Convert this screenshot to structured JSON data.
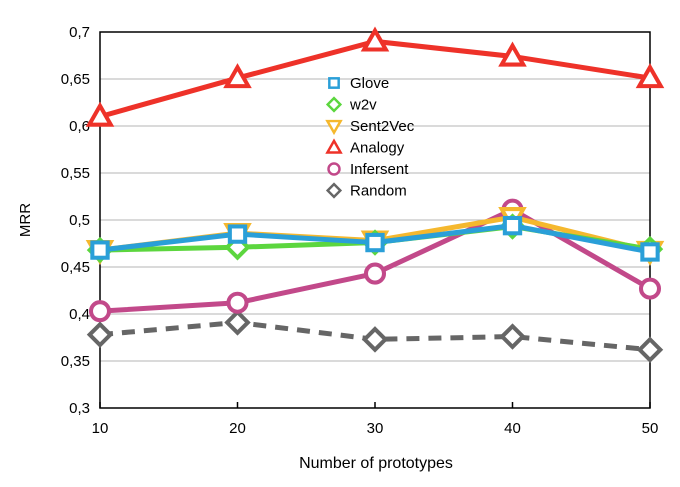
{
  "chart_data": {
    "type": "line",
    "xlabel": "Number of prototypes",
    "ylabel": "MRR",
    "x": [
      10,
      20,
      30,
      40,
      50
    ],
    "x_ticks": [
      "10",
      "20",
      "30",
      "40",
      "50"
    ],
    "ylim": [
      0.3,
      0.7
    ],
    "y_ticks": [
      0.3,
      0.35,
      0.4,
      0.45,
      0.5,
      0.55,
      0.6,
      0.65,
      0.7
    ],
    "y_tick_labels": [
      "0,3",
      "0,35",
      "0,4",
      "0,45",
      "0,5",
      "0,55",
      "0,6",
      "0,65",
      "0,7"
    ],
    "grid": "horizontal",
    "legend_position": "center-top",
    "series": [
      {
        "name": "Glove",
        "values": [
          0.468,
          0.485,
          0.476,
          0.494,
          0.466
        ],
        "color": "#2a9fd8",
        "marker": "square",
        "dashed": false
      },
      {
        "name": "w2v",
        "values": [
          0.468,
          0.471,
          0.476,
          0.493,
          0.469
        ],
        "color": "#5cd63e",
        "marker": "diamond",
        "dashed": false
      },
      {
        "name": "Sent2Vec",
        "values": [
          0.468,
          0.486,
          0.478,
          0.503,
          0.467
        ],
        "color": "#f5b82e",
        "marker": "triangle-down",
        "dashed": false
      },
      {
        "name": "Analogy",
        "values": [
          0.61,
          0.651,
          0.69,
          0.674,
          0.651
        ],
        "color": "#ee3229",
        "marker": "triangle-up",
        "dashed": false
      },
      {
        "name": "Infersent",
        "values": [
          0.403,
          0.412,
          0.443,
          0.511,
          0.427
        ],
        "color": "#c2498a",
        "marker": "circle",
        "dashed": false
      },
      {
        "name": "Random",
        "values": [
          0.378,
          0.391,
          0.373,
          0.376,
          0.362
        ],
        "color": "#666666",
        "marker": "diamond",
        "dashed": true
      }
    ]
  }
}
